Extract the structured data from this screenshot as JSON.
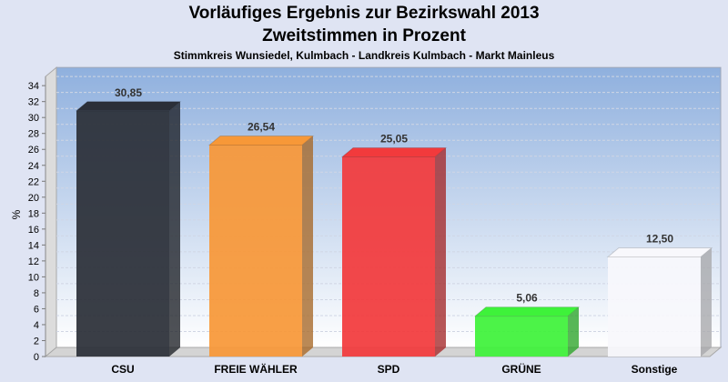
{
  "chart_data": {
    "type": "bar",
    "title": "Vorläufiges Ergebnis zur Bezirkswahl 2013",
    "subtitle": "Zweitstimmen in Prozent",
    "subsubtitle": "Stimmkreis Wunsiedel, Kulmbach - Landkreis Kulmbach - Markt Mainleus",
    "ylabel": "%",
    "xlabel": "",
    "ylim": [
      0,
      34
    ],
    "yticks": [
      0,
      2,
      4,
      6,
      8,
      10,
      12,
      14,
      16,
      18,
      20,
      22,
      24,
      26,
      28,
      30,
      32,
      34
    ],
    "categories": [
      "CSU",
      "FREIE WÄHLER",
      "SPD",
      "GRÜNE",
      "Sonstige"
    ],
    "values": [
      30.85,
      26.54,
      25.05,
      5.06,
      12.5
    ],
    "labels": [
      "30,85",
      "26,54",
      "25,05",
      "5,06",
      "12,50"
    ],
    "colors": [
      "#2b2f38",
      "#f79838",
      "#f23a3c",
      "#3ef23a",
      "#f8f8fc"
    ],
    "grid": true
  }
}
